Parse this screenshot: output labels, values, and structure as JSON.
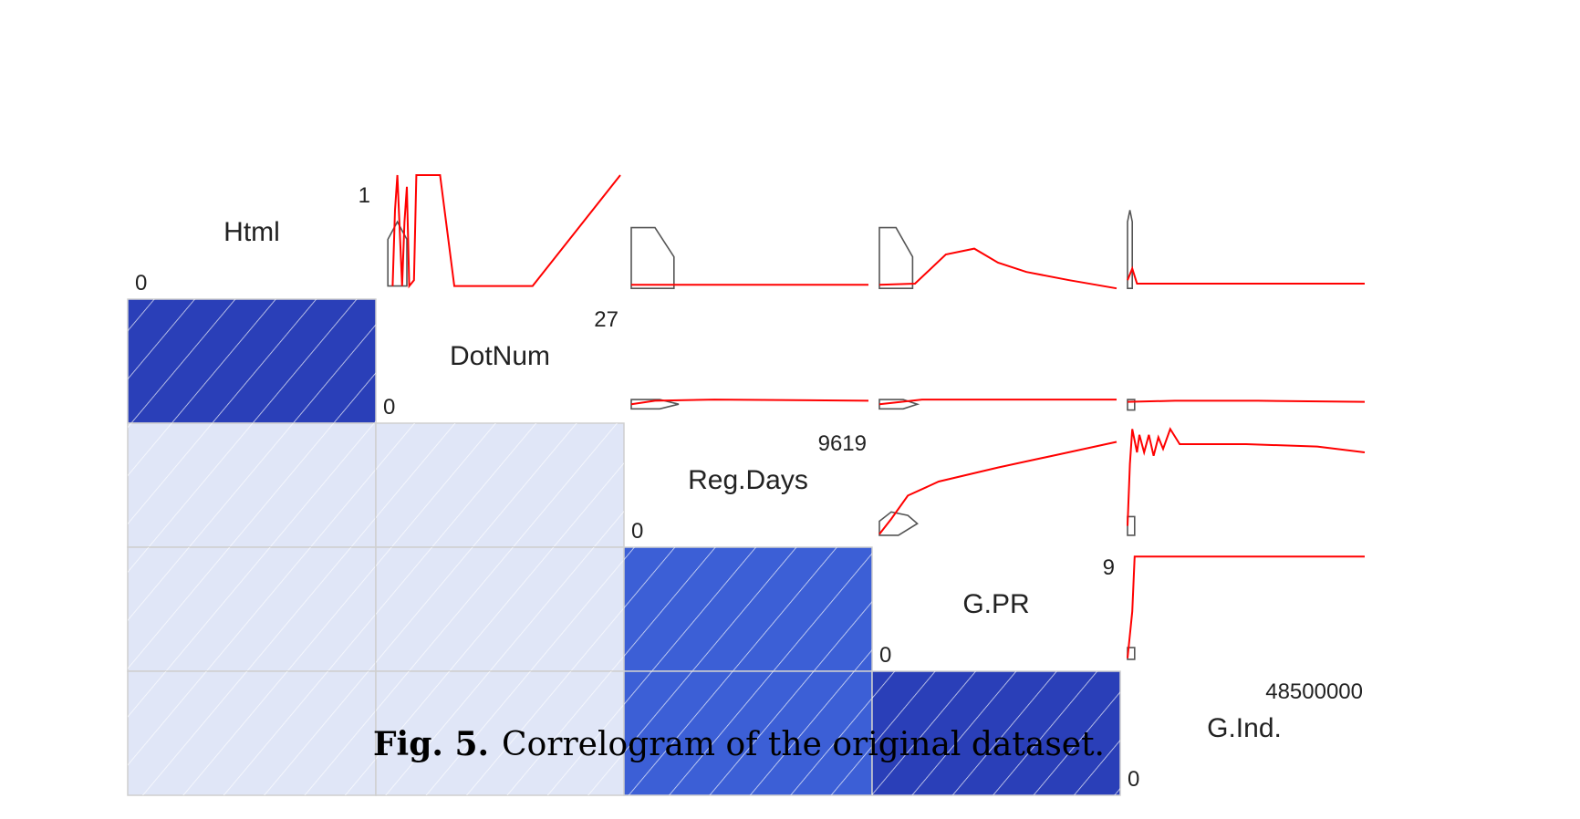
{
  "chart_data": {
    "type": "heatmap",
    "title": "",
    "variables": [
      {
        "name": "Html",
        "min": "0",
        "max": "1"
      },
      {
        "name": "DotNum",
        "min": "0",
        "max": "27"
      },
      {
        "name": "Reg.Days",
        "min": "0",
        "max": "9619"
      },
      {
        "name": "G.PR",
        "min": "0",
        "max": "9"
      },
      {
        "name": "G.Ind.",
        "min": "0",
        "max": "48500000"
      }
    ],
    "lower_panel": "shade",
    "upper_panel": "density-line",
    "correlation_levels": [
      [
        null,
        null,
        null,
        null,
        null
      ],
      [
        1.0,
        null,
        null,
        null,
        null
      ],
      [
        0.15,
        0.15,
        null,
        null,
        null
      ],
      [
        0.15,
        0.15,
        0.65,
        null,
        null
      ],
      [
        0.15,
        0.15,
        0.65,
        1.0,
        null
      ]
    ],
    "colors": {
      "strong": "#2a3fb8",
      "medium": "#3c5fd6",
      "weak": "#e0e6f7",
      "line": "#ff0000",
      "grid": "#cfcfcf"
    }
  },
  "caption": {
    "label": "Fig. 5.",
    "text": "Correlogram of the original dataset."
  }
}
